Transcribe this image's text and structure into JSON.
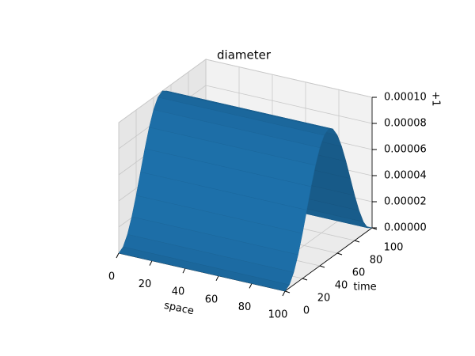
{
  "chart_data": {
    "type": "surface3d",
    "title": "diameter",
    "xlabel": "space",
    "ylabel": "time",
    "offset_text": "+1",
    "color": "#1f77b4",
    "y": [
      0,
      5,
      10,
      15,
      20,
      25,
      30,
      35,
      40,
      45,
      50,
      55,
      60,
      65,
      70,
      75,
      80,
      85,
      90,
      95,
      100
    ],
    "z": [
      0,
      2.4e-06,
      9.5e-06,
      2.06e-05,
      3.45e-05,
      5e-05,
      6.55e-05,
      7.94e-05,
      9.05e-05,
      9.76e-05,
      0.0001,
      9.76e-05,
      9.05e-05,
      7.94e-05,
      6.55e-05,
      5e-05,
      3.45e-05,
      2.06e-05,
      9.5e-06,
      2.4e-06,
      0
    ],
    "xlim": [
      0,
      100
    ],
    "ylim": [
      0,
      100
    ],
    "zlim": [
      0,
      0.0001
    ],
    "xticks": [
      0,
      20,
      40,
      60,
      80,
      100
    ],
    "yticks": [
      0,
      20,
      40,
      60,
      80,
      100
    ],
    "zticks": [
      {
        "value": 0,
        "label": "0.00000"
      },
      {
        "value": 2e-05,
        "label": "0.00002"
      },
      {
        "value": 4e-05,
        "label": "0.00004"
      },
      {
        "value": 6e-05,
        "label": "0.00006"
      },
      {
        "value": 8e-05,
        "label": "0.00008"
      },
      {
        "value": 0.0001,
        "label": "0.00010"
      }
    ],
    "grid": true
  }
}
